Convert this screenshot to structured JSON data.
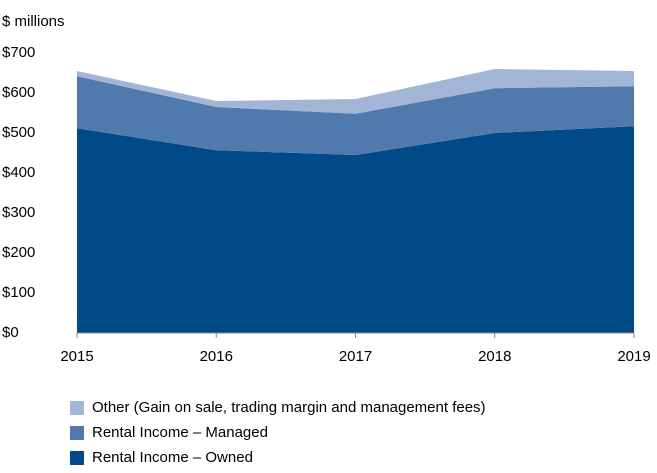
{
  "chart_data": {
    "type": "area",
    "stacked": true,
    "y_axis_label": "$ millions",
    "x": [
      2015,
      2016,
      2017,
      2018,
      2019
    ],
    "xlim": [
      2015,
      2019
    ],
    "xticks": [
      2015,
      2016,
      2017,
      2018,
      2019
    ],
    "ylim": [
      0,
      700
    ],
    "yticks": [
      {
        "value": 0,
        "label": "$0"
      },
      {
        "value": 100,
        "label": "$100"
      },
      {
        "value": 200,
        "label": "$200"
      },
      {
        "value": 300,
        "label": "$300"
      },
      {
        "value": 400,
        "label": "$400"
      },
      {
        "value": 500,
        "label": "$500"
      },
      {
        "value": 600,
        "label": "$600"
      },
      {
        "value": 700,
        "label": "$700"
      }
    ],
    "legend": "bottom",
    "series": [
      {
        "name": "Rental Income – Owned",
        "color": "#004a87",
        "values": [
          512,
          457,
          445,
          500,
          517
        ]
      },
      {
        "name": "Rental Income – Managed",
        "color": "#5079ad",
        "values": [
          130,
          108,
          103,
          112,
          100
        ]
      },
      {
        "name": "Other (Gain on sale, trading margin and management fees)",
        "color": "#a2b5d6",
        "values": [
          13,
          15,
          37,
          48,
          38
        ]
      }
    ]
  }
}
